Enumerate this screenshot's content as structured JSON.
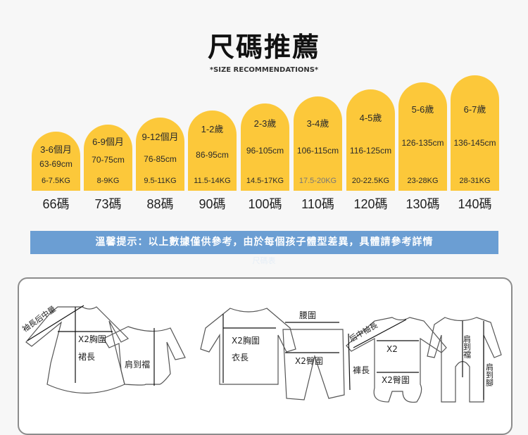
{
  "header": {
    "title": "尺碼推薦",
    "subtitle": "*SIZE RECOMMENDATIONS*"
  },
  "colors": {
    "column": "#fcc83a",
    "banner": "#6b9ed3"
  },
  "sizes": [
    {
      "age": "3-6個月",
      "height": "63-69cm",
      "weight": "6-7.5KG",
      "size": "66碼"
    },
    {
      "age": "6-9個月",
      "height": "70-75cm",
      "weight": "8-9KG",
      "size": "73碼"
    },
    {
      "age": "9-12個月",
      "height": "76-85cm",
      "weight": "9.5-11KG",
      "size": "88碼"
    },
    {
      "age": "1-2歲",
      "height": "86-95cm",
      "weight": "11.5-14KG",
      "size": "90碼"
    },
    {
      "age": "2-3歲",
      "height": "96-105cm",
      "weight": "14.5-17KG",
      "size": "100碼"
    },
    {
      "age": "3-4歲",
      "height": "106-115cm",
      "weight": "17.5-20KG",
      "size": "110碼"
    },
    {
      "age": "4-5歲",
      "height": "116-125cm",
      "weight": "20-22.5KG",
      "size": "120碼"
    },
    {
      "age": "5-6歲",
      "height": "126-135cm",
      "weight": "23-28KG",
      "size": "130碼"
    },
    {
      "age": "6-7歲",
      "height": "136-145cm",
      "weight": "28-31KG",
      "size": "140碼"
    }
  ],
  "notice": {
    "text": "溫馨提示：以上數據僅供參考，由於每個孩子體型差異，具體請參考詳情",
    "faint": "尺碼表"
  },
  "diagram": {
    "sleeve_back": "袖長后中量",
    "chest": "X2胸圍",
    "skirt_length": "裙長",
    "shoulder_crotch": "肩到襠",
    "top_chest": "X2胸圍",
    "top_length": "衣長",
    "waist": "腰圍",
    "hip": "X2臀圍",
    "pants_length": "褲長",
    "back_sleeve": "后中袖長",
    "romper_chest": "X2",
    "romper_hip": "X2臀圍",
    "romper_shoulder_crotch": "肩到襠",
    "romper_shoulder_foot": "肩到腳"
  }
}
